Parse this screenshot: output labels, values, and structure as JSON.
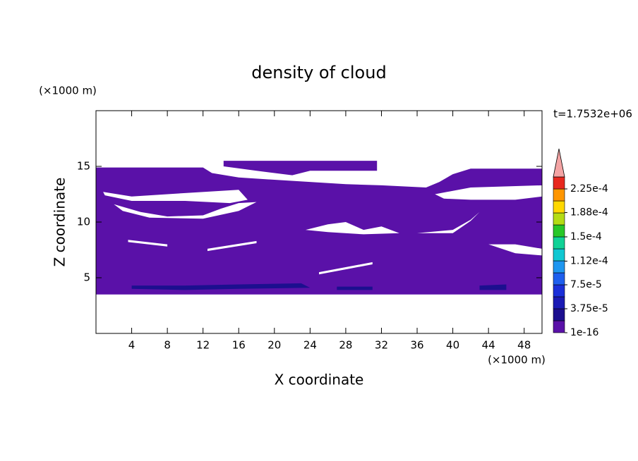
{
  "chart_data": {
    "type": "contour",
    "title": "density of cloud",
    "xlabel": "X coordinate",
    "ylabel": "Z coordinate",
    "xunit": "(×1000 m)",
    "yunit": "(×1000 m)",
    "annotation": "t=1.7532e+06",
    "xlim": [
      0,
      50
    ],
    "ylim": [
      0,
      20
    ],
    "xticks": [
      4,
      8,
      12,
      16,
      20,
      24,
      28,
      32,
      36,
      40,
      44,
      48
    ],
    "yticks": [
      5,
      10,
      15
    ],
    "grid": false,
    "colorbar": {
      "levels": [
        1e-16,
        1.875e-05,
        3.75e-05,
        5.625e-05,
        7.5e-05,
        9.375e-05,
        0.0001125,
        0.00013125,
        0.00015,
        0.00016875,
        0.0001875,
        0.00020625,
        0.000225,
        0.00024375
      ],
      "colors": [
        "#5a11a8",
        "#1c0f8f",
        "#1a1ab4",
        "#1a2fd9",
        "#1e5fee",
        "#1e96f0",
        "#10c8d2",
        "#10d296",
        "#28c828",
        "#b4dc14",
        "#ffd800",
        "#ff9600",
        "#e8281e"
      ],
      "extend_color": "#f4a4a4",
      "ticks": [
        {
          "value": 1e-16,
          "label": "1e-16"
        },
        {
          "value": 3.75e-05,
          "label": "3.75e-5"
        },
        {
          "value": 7.5e-05,
          "label": "7.5e-5"
        },
        {
          "value": 0.000112,
          "label": "1.12e-4"
        },
        {
          "value": 0.00015,
          "label": "1.5e-4"
        },
        {
          "value": 0.000188,
          "label": "1.88e-4"
        },
        {
          "value": 0.000225,
          "label": "2.25e-4"
        }
      ]
    },
    "regions": [
      {
        "level": 1e-16,
        "x": [
          0,
          50,
          50,
          42,
          40,
          38.5,
          37,
          32,
          28,
          20,
          16,
          13,
          12,
          0,
          null,
          0.8,
          4,
          10,
          16,
          17,
          15,
          10,
          4,
          1,
          null,
          38,
          42,
          50,
          50,
          47,
          42,
          39,
          null,
          2,
          5,
          8,
          12,
          14,
          16,
          18,
          16,
          12,
          6,
          3,
          null,
          23.5,
          26,
          28,
          30,
          32,
          34,
          30,
          26,
          null,
          36,
          40,
          42,
          43,
          42,
          40,
          null,
          44,
          47,
          50,
          50,
          47,
          null,
          3.6,
          8,
          8,
          3.6,
          null,
          12.5,
          18,
          18,
          12.5,
          null,
          25,
          31,
          31,
          25
        ],
        "y": [
          3.5,
          3.5,
          14.8,
          14.8,
          14.3,
          13.6,
          13.1,
          13.3,
          13.4,
          13.8,
          14.0,
          14.4,
          14.9,
          14.9,
          null,
          12.7,
          12.3,
          12.6,
          12.9,
          12.0,
          11.7,
          11.9,
          11.9,
          12.4,
          null,
          12.5,
          13.1,
          13.3,
          12.3,
          12.0,
          12.0,
          12.1,
          null,
          11.6,
          10.9,
          10.5,
          10.6,
          11.2,
          11.7,
          11.8,
          11.0,
          10.3,
          10.4,
          11.0,
          null,
          9.3,
          9.8,
          10.0,
          9.3,
          9.6,
          9.0,
          8.9,
          9.1,
          null,
          9.0,
          9.3,
          10.2,
          10.9,
          10.1,
          9.0,
          null,
          8.0,
          7.2,
          7.0,
          7.6,
          8.0,
          null,
          8.4,
          8.0,
          7.8,
          8.2,
          null,
          7.6,
          8.3,
          8.1,
          7.4,
          null,
          5.5,
          6.4,
          6.2,
          5.3
        ]
      },
      {
        "level": 1e-16,
        "x": [
          14.3,
          31.5,
          31.5,
          28,
          24,
          22,
          18,
          14.3
        ],
        "y": [
          15.5,
          15.5,
          14.6,
          14.6,
          14.6,
          14.2,
          14.6,
          15.0
        ]
      },
      {
        "level": 1.875e-05,
        "x": [
          4,
          10,
          16,
          24,
          23,
          16,
          10,
          4,
          null,
          27,
          31,
          31,
          27,
          null,
          43,
          46,
          46,
          43
        ],
        "y": [
          4.0,
          3.9,
          4.0,
          4.1,
          4.5,
          4.4,
          4.3,
          4.3,
          null,
          3.9,
          3.9,
          4.2,
          4.2,
          null,
          3.9,
          3.9,
          4.4,
          4.3
        ]
      }
    ]
  }
}
